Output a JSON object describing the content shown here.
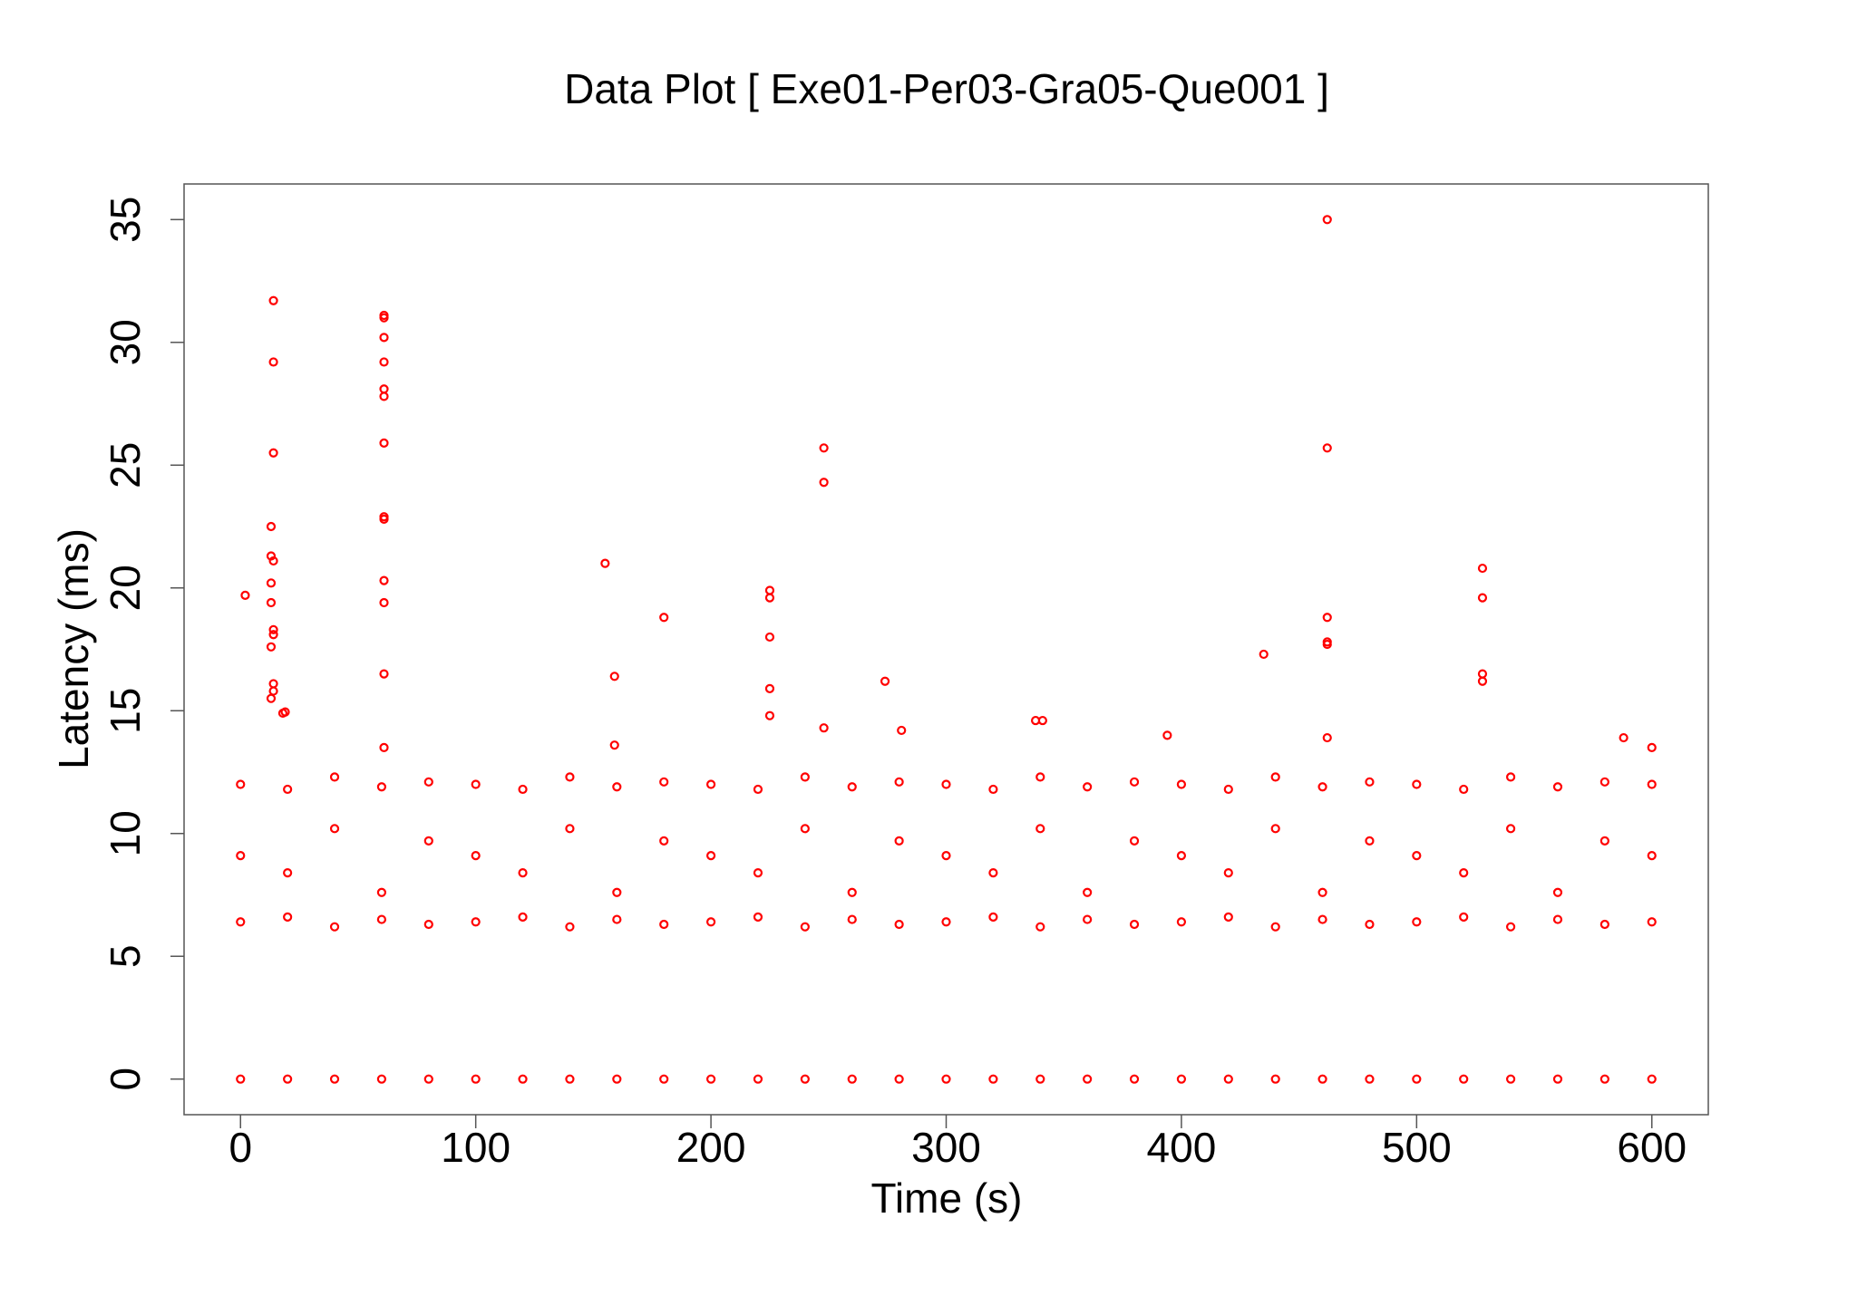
{
  "chart_data": {
    "type": "scatter",
    "title": "Data Plot [ Exe01-Per03-Gra05-Que001 ]",
    "x_label": "Time (s)",
    "y_label": "Latency (ms)",
    "color": "#ff0000",
    "xlim": [
      -24,
      624
    ],
    "ylim": [
      -1.45,
      36.45
    ],
    "xticks": [
      0,
      100,
      200,
      300,
      400,
      500,
      600
    ],
    "yticks": [
      0,
      5,
      10,
      15,
      20,
      25,
      30,
      35
    ],
    "x": [
      2,
      14,
      14,
      14,
      13,
      13,
      14,
      13,
      13,
      14,
      14,
      13,
      14,
      14,
      13,
      18,
      19,
      61,
      61,
      61,
      61,
      61,
      61,
      61,
      61,
      61,
      61,
      61,
      61,
      61,
      155,
      159,
      159,
      180,
      225,
      225,
      225,
      225,
      225,
      248,
      248,
      248,
      274,
      281,
      338,
      341,
      394,
      435,
      462,
      462,
      462,
      462,
      462,
      462,
      528,
      528,
      528,
      528,
      588,
      600,
      0,
      0,
      0,
      20,
      20,
      20,
      40,
      40,
      40,
      60,
      60,
      60,
      80,
      80,
      80,
      100,
      100,
      100,
      120,
      120,
      120,
      140,
      140,
      140,
      160,
      160,
      160,
      180,
      180,
      180,
      200,
      200,
      200,
      220,
      220,
      220,
      240,
      240,
      240,
      260,
      260,
      260,
      280,
      280,
      280,
      300,
      300,
      300,
      320,
      320,
      320,
      340,
      340,
      340,
      360,
      360,
      360,
      380,
      380,
      380,
      400,
      400,
      400,
      420,
      420,
      420,
      440,
      440,
      440,
      460,
      460,
      460,
      480,
      480,
      480,
      500,
      500,
      500,
      520,
      520,
      520,
      540,
      540,
      540,
      560,
      560,
      560,
      580,
      580,
      580,
      600,
      600,
      600,
      0,
      20,
      40,
      60,
      80,
      100,
      120,
      140,
      160,
      180,
      200,
      220,
      240,
      260,
      280,
      300,
      320,
      340,
      360,
      380,
      400,
      420,
      440,
      460,
      480,
      500,
      520,
      540,
      560,
      580,
      600
    ],
    "values": [
      19.7,
      31.7,
      29.2,
      25.5,
      22.5,
      21.3,
      21.1,
      20.2,
      19.4,
      18.3,
      18.1,
      17.6,
      16.1,
      15.8,
      15.5,
      14.9,
      14.95,
      31.1,
      31.0,
      30.2,
      29.2,
      28.1,
      27.8,
      25.9,
      22.9,
      22.8,
      20.3,
      19.4,
      16.5,
      13.5,
      21.0,
      16.4,
      13.6,
      18.8,
      19.9,
      19.6,
      18.0,
      15.9,
      14.8,
      25.7,
      24.3,
      14.3,
      16.2,
      14.2,
      14.6,
      14.6,
      14.0,
      17.3,
      35.0,
      25.7,
      18.8,
      17.8,
      17.7,
      13.9,
      20.8,
      19.6,
      16.5,
      16.2,
      13.9,
      13.5,
      12.0,
      9.1,
      6.4,
      11.8,
      8.4,
      6.6,
      12.3,
      10.2,
      6.2,
      11.9,
      7.6,
      6.5,
      12.1,
      9.7,
      6.3,
      12.0,
      9.1,
      6.4,
      11.8,
      8.4,
      6.6,
      12.3,
      10.2,
      6.2,
      11.9,
      7.6,
      6.5,
      12.1,
      9.7,
      6.3,
      12.0,
      9.1,
      6.4,
      11.8,
      8.4,
      6.6,
      12.3,
      10.2,
      6.2,
      11.9,
      7.6,
      6.5,
      12.1,
      9.7,
      6.3,
      12.0,
      9.1,
      6.4,
      11.8,
      8.4,
      6.6,
      12.3,
      10.2,
      6.2,
      11.9,
      7.6,
      6.5,
      12.1,
      9.7,
      6.3,
      12.0,
      9.1,
      6.4,
      11.8,
      8.4,
      6.6,
      12.3,
      10.2,
      6.2,
      11.9,
      7.6,
      6.5,
      12.1,
      9.7,
      6.3,
      12.0,
      9.1,
      6.4,
      11.8,
      8.4,
      6.6,
      12.3,
      10.2,
      6.2,
      11.9,
      7.6,
      6.5,
      12.1,
      9.7,
      6.3,
      12.0,
      9.1,
      6.4,
      0,
      0,
      0,
      0,
      0,
      0,
      0,
      0,
      0,
      0,
      0,
      0,
      0,
      0,
      0,
      0,
      0,
      0,
      0,
      0,
      0,
      0,
      0,
      0,
      0,
      0,
      0,
      0,
      0,
      0,
      0
    ]
  }
}
